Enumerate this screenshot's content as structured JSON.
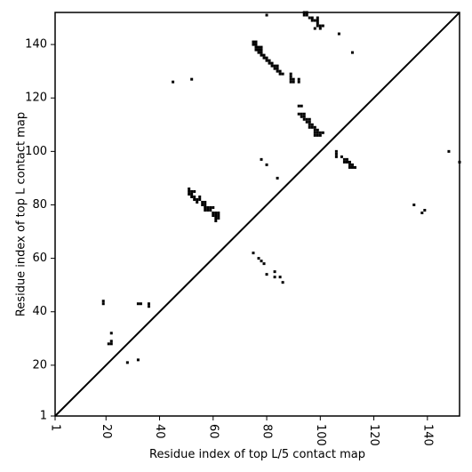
{
  "chart_data": {
    "type": "scatter",
    "title": "",
    "xlabel": "Residue index of top L/5 contact map",
    "ylabel": "Residue index of top L contact map",
    "xlim": [
      1,
      152
    ],
    "ylim": [
      1,
      152
    ],
    "xticks": [
      {
        "value": 1,
        "label": "1"
      },
      {
        "value": 20,
        "label": "20"
      },
      {
        "value": 40,
        "label": "40"
      },
      {
        "value": 60,
        "label": "60"
      },
      {
        "value": 80,
        "label": "80"
      },
      {
        "value": 100,
        "label": "100"
      },
      {
        "value": 120,
        "label": "120"
      },
      {
        "value": 140,
        "label": "140"
      }
    ],
    "yticks": [
      {
        "value": 1,
        "label": "1"
      },
      {
        "value": 20,
        "label": "20"
      },
      {
        "value": 40,
        "label": "40"
      },
      {
        "value": 60,
        "label": "60"
      },
      {
        "value": 80,
        "label": "80"
      },
      {
        "value": 100,
        "label": "100"
      },
      {
        "value": 120,
        "label": "120"
      },
      {
        "value": 140,
        "label": "140"
      }
    ],
    "x_tick_rotation": -90,
    "diagonal": true,
    "grid": false,
    "marker_color": "#000000",
    "series": [
      {
        "points": [
          [
            75,
            140
          ],
          [
            76,
            140
          ],
          [
            75,
            141
          ],
          [
            76,
            141
          ],
          [
            76,
            139
          ],
          [
            77,
            139
          ],
          [
            78,
            139
          ],
          [
            76,
            138
          ],
          [
            77,
            138
          ],
          [
            78,
            138
          ],
          [
            77,
            137
          ],
          [
            78,
            137
          ],
          [
            78,
            136
          ],
          [
            79,
            136
          ],
          [
            79,
            135
          ],
          [
            80,
            135
          ],
          [
            80,
            134
          ],
          [
            81,
            134
          ],
          [
            81,
            133
          ],
          [
            82,
            133
          ],
          [
            82,
            132
          ],
          [
            83,
            132
          ],
          [
            84,
            132
          ],
          [
            83,
            131
          ],
          [
            84,
            131
          ],
          [
            84,
            130
          ],
          [
            85,
            130
          ],
          [
            85,
            129
          ],
          [
            86,
            129
          ],
          [
            89,
            129
          ],
          [
            89,
            128
          ],
          [
            89,
            127
          ],
          [
            90,
            127
          ],
          [
            89,
            126
          ],
          [
            90,
            126
          ],
          [
            92,
            127
          ],
          [
            92,
            126
          ],
          [
            94,
            151
          ],
          [
            95,
            151
          ],
          [
            94,
            152
          ],
          [
            95,
            152
          ],
          [
            96,
            150
          ],
          [
            97,
            150
          ],
          [
            97,
            149
          ],
          [
            98,
            149
          ],
          [
            99,
            149
          ],
          [
            99,
            150
          ],
          [
            99,
            148
          ],
          [
            99,
            147
          ],
          [
            100,
            147
          ],
          [
            101,
            147
          ],
          [
            98,
            146
          ],
          [
            100,
            146
          ],
          [
            107,
            144
          ],
          [
            112,
            137
          ],
          [
            45,
            126
          ],
          [
            52,
            127
          ],
          [
            80,
            151
          ],
          [
            92,
            117
          ],
          [
            93,
            117
          ],
          [
            92,
            114
          ],
          [
            93,
            114
          ],
          [
            94,
            114
          ],
          [
            93,
            113
          ],
          [
            94,
            113
          ],
          [
            94,
            112
          ],
          [
            95,
            112
          ],
          [
            96,
            112
          ],
          [
            95,
            111
          ],
          [
            96,
            111
          ],
          [
            96,
            110
          ],
          [
            97,
            110
          ],
          [
            96,
            109
          ],
          [
            97,
            109
          ],
          [
            98,
            109
          ],
          [
            98,
            108
          ],
          [
            99,
            108
          ],
          [
            98,
            107
          ],
          [
            99,
            107
          ],
          [
            100,
            107
          ],
          [
            101,
            107
          ],
          [
            98,
            106
          ],
          [
            99,
            106
          ],
          [
            100,
            106
          ],
          [
            106,
            100
          ],
          [
            106,
            99
          ],
          [
            106,
            98
          ],
          [
            108,
            98
          ],
          [
            109,
            97
          ],
          [
            110,
            97
          ],
          [
            109,
            96
          ],
          [
            110,
            96
          ],
          [
            111,
            96
          ],
          [
            111,
            95
          ],
          [
            112,
            95
          ],
          [
            111,
            94
          ],
          [
            112,
            94
          ],
          [
            113,
            94
          ],
          [
            148,
            100
          ],
          [
            152,
            96
          ],
          [
            135,
            80
          ],
          [
            139,
            78
          ],
          [
            138,
            77
          ],
          [
            78,
            97
          ],
          [
            80,
            95
          ],
          [
            84,
            90
          ],
          [
            51,
            86
          ],
          [
            51,
            85
          ],
          [
            52,
            85
          ],
          [
            53,
            85
          ],
          [
            51,
            84
          ],
          [
            52,
            84
          ],
          [
            52,
            83
          ],
          [
            53,
            83
          ],
          [
            55,
            83
          ],
          [
            53,
            82
          ],
          [
            54,
            82
          ],
          [
            55,
            82
          ],
          [
            54,
            81
          ],
          [
            56,
            81
          ],
          [
            57,
            81
          ],
          [
            56,
            80
          ],
          [
            57,
            80
          ],
          [
            57,
            79
          ],
          [
            58,
            79
          ],
          [
            59,
            79
          ],
          [
            60,
            79
          ],
          [
            57,
            78
          ],
          [
            58,
            78
          ],
          [
            59,
            78
          ],
          [
            60,
            77
          ],
          [
            61,
            77
          ],
          [
            62,
            77
          ],
          [
            60,
            76
          ],
          [
            61,
            76
          ],
          [
            62,
            76
          ],
          [
            61,
            75
          ],
          [
            62,
            75
          ],
          [
            61,
            74
          ],
          [
            75,
            62
          ],
          [
            77,
            60
          ],
          [
            78,
            59
          ],
          [
            79,
            58
          ],
          [
            80,
            54
          ],
          [
            83,
            55
          ],
          [
            83,
            53
          ],
          [
            85,
            53
          ],
          [
            86,
            51
          ],
          [
            19,
            44
          ],
          [
            19,
            43
          ],
          [
            32,
            43
          ],
          [
            33,
            43
          ],
          [
            36,
            43
          ],
          [
            36,
            42
          ],
          [
            22,
            32
          ],
          [
            22,
            29
          ],
          [
            21,
            28
          ],
          [
            22,
            28
          ],
          [
            32,
            22
          ],
          [
            28,
            21
          ]
        ]
      }
    ]
  }
}
